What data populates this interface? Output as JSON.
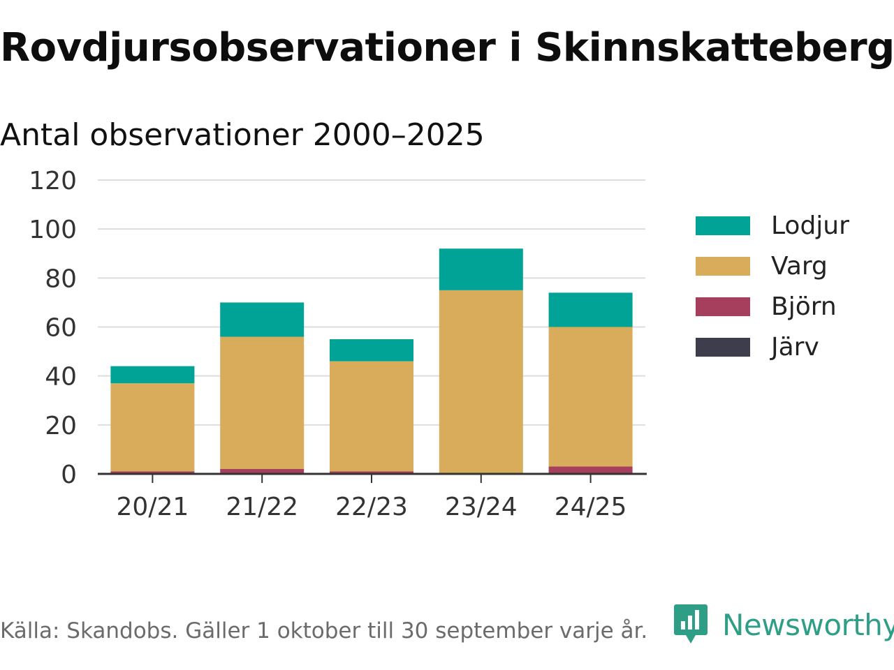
{
  "title": "Rovdjursobservationer i Skinnskatteberg",
  "subtitle": "Antal observationer 2000–2025",
  "source": "Källa: Skandobs. Gäller 1 oktober till 30 september varje år.",
  "brand": {
    "name": "Newsworthy"
  },
  "colors": {
    "Lodjur": "#00a396",
    "Varg": "#d9ac5c",
    "Björn": "#a63f5e",
    "Järv": "#3e3d4b",
    "grid": "#dddddd",
    "axis": "#333333",
    "brand": "#2f9e86"
  },
  "chart_data": {
    "type": "bar",
    "stacked": true,
    "categories": [
      "20/21",
      "21/22",
      "22/23",
      "23/24",
      "24/25"
    ],
    "series": [
      {
        "name": "Järv",
        "values": [
          0,
          0,
          0,
          0,
          0
        ]
      },
      {
        "name": "Björn",
        "values": [
          1,
          2,
          1,
          0,
          3
        ]
      },
      {
        "name": "Varg",
        "values": [
          36,
          54,
          45,
          75,
          57
        ]
      },
      {
        "name": "Lodjur",
        "values": [
          7,
          14,
          9,
          17,
          14
        ]
      }
    ],
    "legend": [
      "Lodjur",
      "Varg",
      "Björn",
      "Järv"
    ],
    "legend_position": "right",
    "yticks": [
      0,
      20,
      40,
      60,
      80,
      100,
      120
    ],
    "ylim": [
      0,
      120
    ],
    "grid": true,
    "xlabel": "",
    "ylabel": ""
  }
}
